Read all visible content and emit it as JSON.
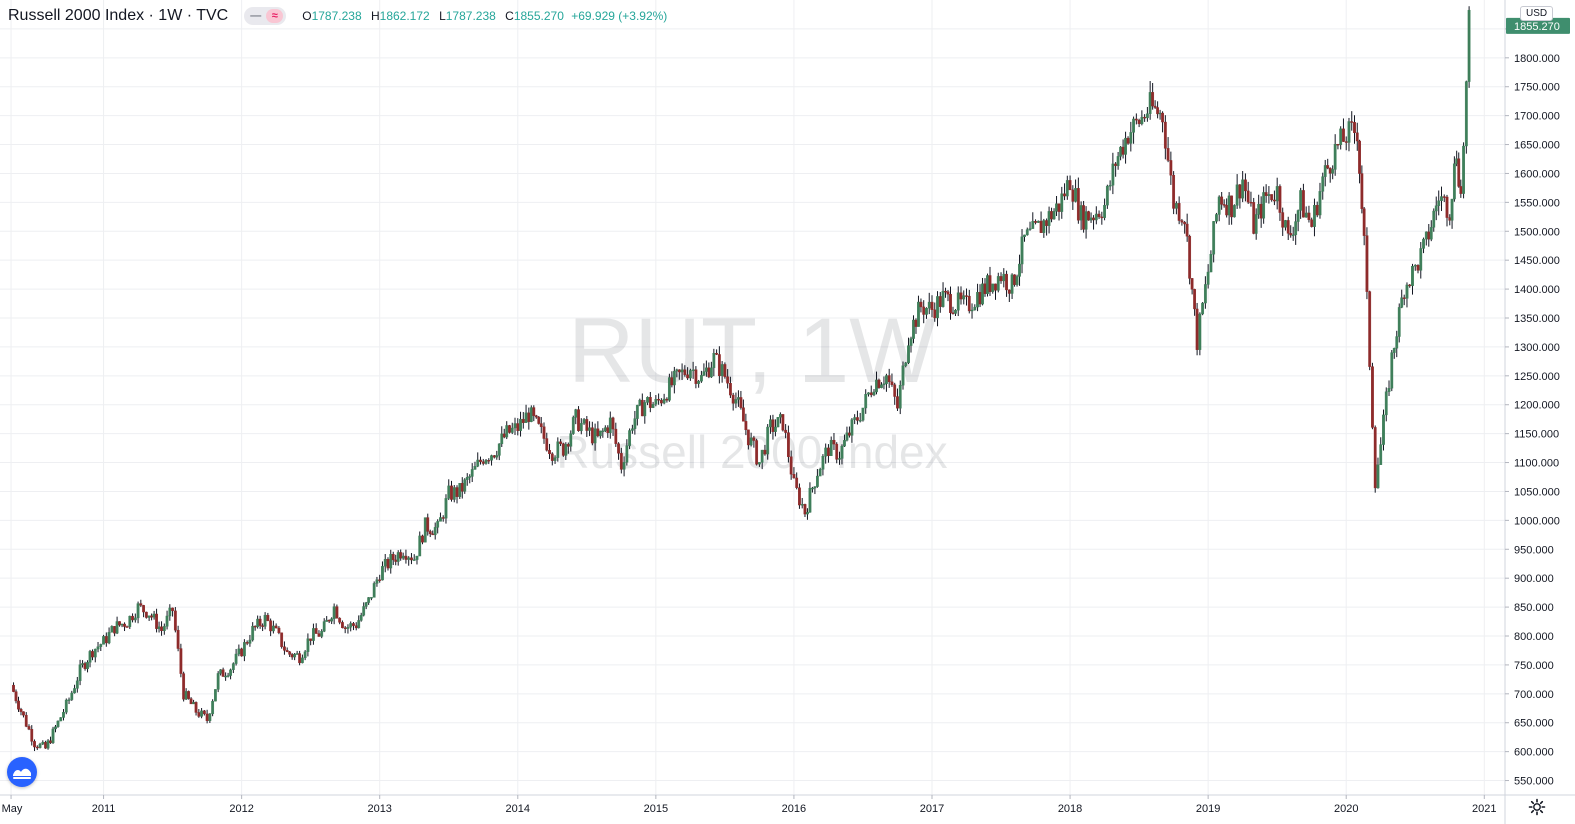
{
  "header": {
    "title": "Russell 2000 Index · 1W · TVC",
    "toggle": [
      "—",
      "≈"
    ],
    "ohlc": {
      "o_label": "O",
      "o": "1787.238",
      "h_label": "H",
      "h": "1862.172",
      "l_label": "L",
      "l": "1787.238",
      "c_label": "C",
      "c": "1855.270",
      "change": "+69.929 (+3.92%)"
    }
  },
  "currency": "USD",
  "watermark": {
    "symbol": "RUT, 1W",
    "name": "Russell 2000 Index"
  },
  "colors": {
    "up": "#26a69a",
    "down": "#ef5350",
    "body_up": "#3f7f5a",
    "body_down": "#8e2b2b",
    "wick": "#131722",
    "grid": "#eeeff2",
    "last_price": "#3f8e6e"
  },
  "icons": {
    "logo": "tradingview-logo-icon",
    "settings": "gear-icon"
  },
  "chart_data": {
    "type": "candlestick",
    "title": "Russell 2000 Index",
    "interval": "1W",
    "currency": "USD",
    "x_range": [
      "2010-05",
      "2020-11"
    ],
    "ylim": [
      525,
      1900
    ],
    "y_ticks": [
      550,
      600,
      650,
      700,
      750,
      800,
      850,
      900,
      950,
      1000,
      1050,
      1100,
      1150,
      1200,
      1250,
      1300,
      1350,
      1400,
      1450,
      1500,
      1550,
      1600,
      1650,
      1700,
      1750,
      1800,
      1850
    ],
    "x_ticks": [
      {
        "label": "May",
        "t": 2010.33
      },
      {
        "label": "2011",
        "t": 2011
      },
      {
        "label": "2012",
        "t": 2012
      },
      {
        "label": "2013",
        "t": 2013
      },
      {
        "label": "2014",
        "t": 2014
      },
      {
        "label": "2015",
        "t": 2015
      },
      {
        "label": "2016",
        "t": 2016
      },
      {
        "label": "2017",
        "t": 2017
      },
      {
        "label": "2018",
        "t": 2018
      },
      {
        "label": "2019",
        "t": 2019
      },
      {
        "label": "2020",
        "t": 2020
      },
      {
        "label": "2021",
        "t": 2021
      }
    ],
    "last_price": {
      "value": 1855.27,
      "label": "1855.270"
    },
    "series": [
      {
        "name": "RUT",
        "points": [
          [
            2010.33,
            715
          ],
          [
            2010.42,
            660
          ],
          [
            2010.5,
            615
          ],
          [
            2010.58,
            605
          ],
          [
            2010.67,
            650
          ],
          [
            2010.75,
            690
          ],
          [
            2010.83,
            740
          ],
          [
            2010.92,
            775
          ],
          [
            2011.0,
            790
          ],
          [
            2011.08,
            815
          ],
          [
            2011.17,
            825
          ],
          [
            2011.25,
            850
          ],
          [
            2011.33,
            840
          ],
          [
            2011.42,
            810
          ],
          [
            2011.5,
            845
          ],
          [
            2011.58,
            700
          ],
          [
            2011.67,
            670
          ],
          [
            2011.75,
            655
          ],
          [
            2011.83,
            730
          ],
          [
            2011.92,
            745
          ],
          [
            2012.0,
            775
          ],
          [
            2012.08,
            810
          ],
          [
            2012.17,
            830
          ],
          [
            2012.25,
            805
          ],
          [
            2012.33,
            770
          ],
          [
            2012.42,
            765
          ],
          [
            2012.5,
            800
          ],
          [
            2012.58,
            805
          ],
          [
            2012.67,
            850
          ],
          [
            2012.75,
            815
          ],
          [
            2012.83,
            820
          ],
          [
            2012.92,
            860
          ],
          [
            2013.0,
            910
          ],
          [
            2013.08,
            930
          ],
          [
            2013.17,
            950
          ],
          [
            2013.25,
            935
          ],
          [
            2013.33,
            990
          ],
          [
            2013.42,
            985
          ],
          [
            2013.5,
            1045
          ],
          [
            2013.58,
            1050
          ],
          [
            2013.67,
            1080
          ],
          [
            2013.75,
            1110
          ],
          [
            2013.83,
            1120
          ],
          [
            2013.92,
            1150
          ],
          [
            2014.0,
            1160
          ],
          [
            2014.08,
            1185
          ],
          [
            2014.17,
            1150
          ],
          [
            2014.25,
            1120
          ],
          [
            2014.33,
            1125
          ],
          [
            2014.42,
            1175
          ],
          [
            2014.5,
            1155
          ],
          [
            2014.58,
            1140
          ],
          [
            2014.67,
            1170
          ],
          [
            2014.75,
            1095
          ],
          [
            2014.83,
            1170
          ],
          [
            2014.92,
            1205
          ],
          [
            2015.0,
            1200
          ],
          [
            2015.08,
            1225
          ],
          [
            2015.17,
            1250
          ],
          [
            2015.25,
            1265
          ],
          [
            2015.33,
            1245
          ],
          [
            2015.42,
            1280
          ],
          [
            2015.5,
            1250
          ],
          [
            2015.58,
            1210
          ],
          [
            2015.67,
            1145
          ],
          [
            2015.75,
            1100
          ],
          [
            2015.83,
            1160
          ],
          [
            2015.92,
            1170
          ],
          [
            2016.0,
            1060
          ],
          [
            2016.08,
            1015
          ],
          [
            2016.17,
            1085
          ],
          [
            2016.25,
            1125
          ],
          [
            2016.33,
            1115
          ],
          [
            2016.42,
            1160
          ],
          [
            2016.5,
            1195
          ],
          [
            2016.58,
            1240
          ],
          [
            2016.67,
            1250
          ],
          [
            2016.75,
            1195
          ],
          [
            2016.83,
            1320
          ],
          [
            2016.92,
            1370
          ],
          [
            2017.0,
            1365
          ],
          [
            2017.08,
            1385
          ],
          [
            2017.17,
            1375
          ],
          [
            2017.25,
            1370
          ],
          [
            2017.33,
            1390
          ],
          [
            2017.42,
            1410
          ],
          [
            2017.5,
            1425
          ],
          [
            2017.58,
            1405
          ],
          [
            2017.67,
            1485
          ],
          [
            2017.75,
            1500
          ],
          [
            2017.83,
            1520
          ],
          [
            2017.92,
            1545
          ],
          [
            2018.0,
            1590
          ],
          [
            2018.08,
            1525
          ],
          [
            2018.17,
            1530
          ],
          [
            2018.25,
            1545
          ],
          [
            2018.33,
            1620
          ],
          [
            2018.42,
            1670
          ],
          [
            2018.5,
            1690
          ],
          [
            2018.58,
            1715
          ],
          [
            2018.67,
            1700
          ],
          [
            2018.75,
            1550
          ],
          [
            2018.83,
            1525
          ],
          [
            2018.92,
            1310
          ],
          [
            2019.0,
            1430
          ],
          [
            2019.08,
            1560
          ],
          [
            2019.17,
            1545
          ],
          [
            2019.25,
            1590
          ],
          [
            2019.33,
            1510
          ],
          [
            2019.42,
            1560
          ],
          [
            2019.5,
            1570
          ],
          [
            2019.58,
            1485
          ],
          [
            2019.67,
            1550
          ],
          [
            2019.75,
            1510
          ],
          [
            2019.83,
            1590
          ],
          [
            2019.92,
            1640
          ],
          [
            2020.0,
            1665
          ],
          [
            2020.08,
            1675
          ],
          [
            2020.13,
            1480
          ],
          [
            2020.21,
            1070
          ],
          [
            2020.25,
            1130
          ],
          [
            2020.33,
            1280
          ],
          [
            2020.42,
            1405
          ],
          [
            2020.5,
            1435
          ],
          [
            2020.58,
            1480
          ],
          [
            2020.67,
            1560
          ],
          [
            2020.75,
            1540
          ],
          [
            2020.8,
            1640
          ],
          [
            2020.83,
            1560
          ],
          [
            2020.87,
            1750
          ],
          [
            2020.89,
            1855.27
          ]
        ]
      }
    ]
  }
}
